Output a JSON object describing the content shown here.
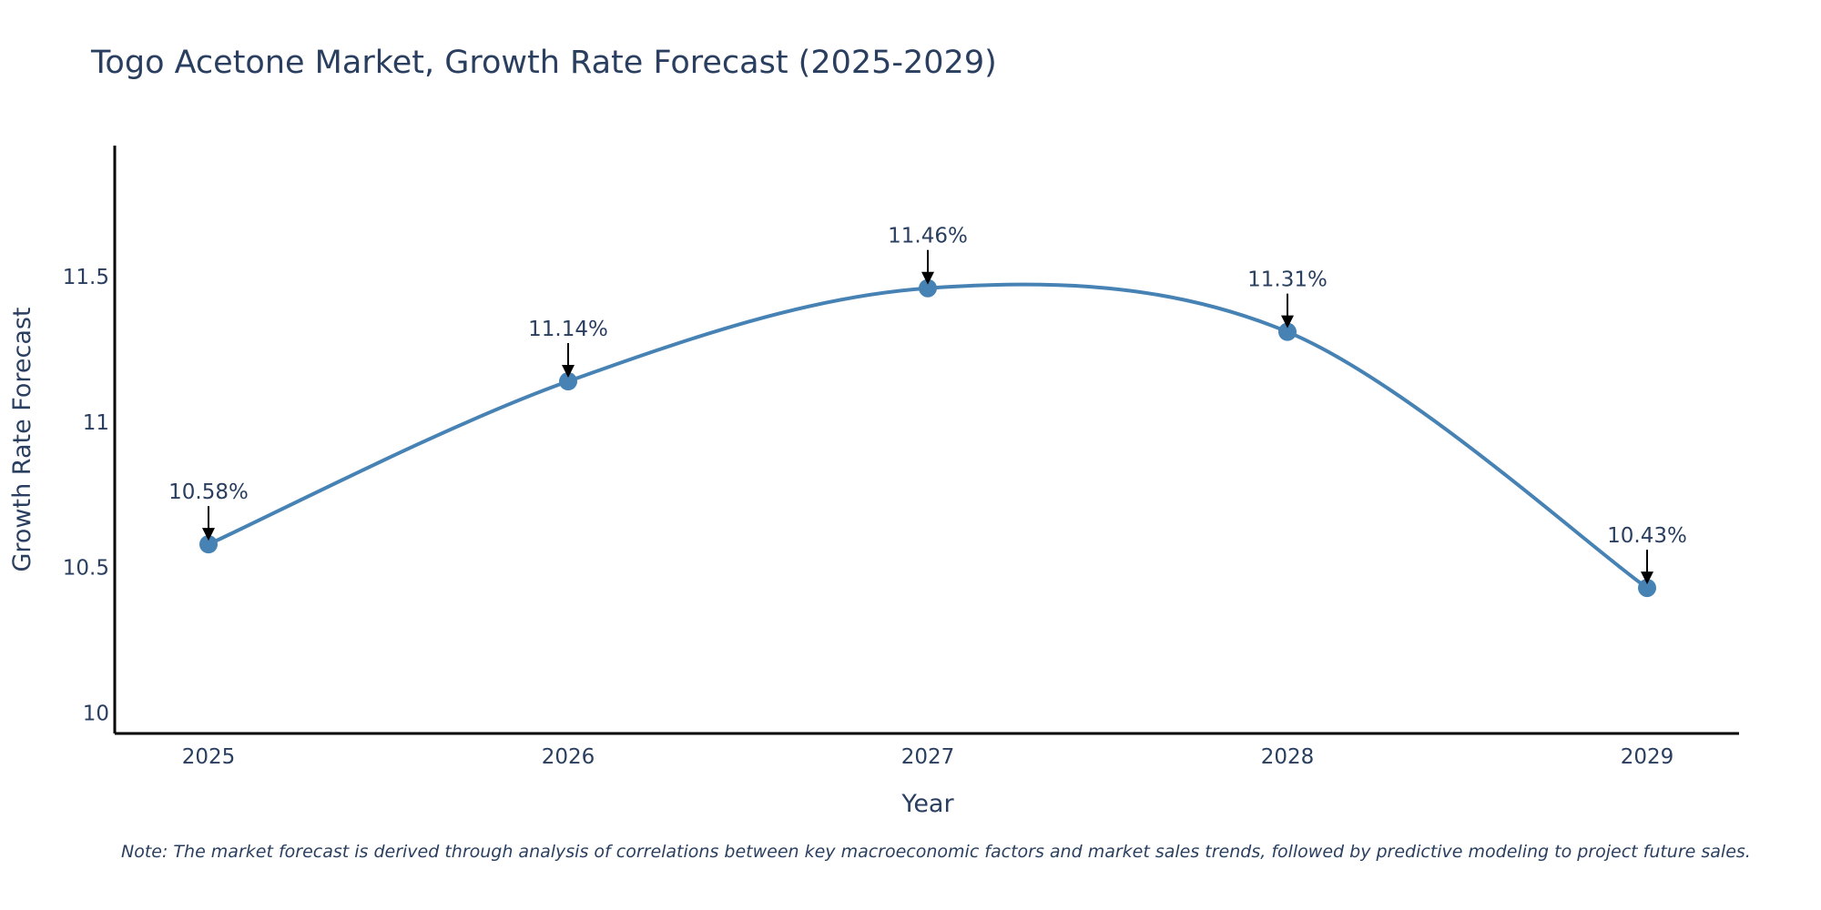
{
  "chart_data": {
    "type": "line",
    "title": "Togo Acetone Market, Growth Rate Forecast (2025-2029)",
    "xlabel": "Year",
    "ylabel": "Growth Rate Forecast",
    "categories": [
      "2025",
      "2026",
      "2027",
      "2028",
      "2029"
    ],
    "series": [
      {
        "name": "Growth Rate Forecast",
        "values": [
          10.58,
          11.14,
          11.46,
          11.31,
          10.43
        ],
        "labels": [
          "10.58%",
          "11.14%",
          "11.46%",
          "11.31%",
          "10.43%"
        ]
      }
    ],
    "ylim": [
      9.93,
      11.95
    ],
    "yticks": [
      10,
      10.5,
      11,
      11.5
    ],
    "ytick_labels": [
      "10",
      "10.5",
      "11",
      "11.5"
    ],
    "grid": false,
    "line_shape": "spline",
    "note": "Note: The market forecast is derived through analysis of correlations between key macroeconomic factors and market sales trends, followed by predictive modeling to project future sales."
  },
  "colors": {
    "line": "#4682b4",
    "marker": "#4682b4",
    "axis": "#000000",
    "text": "#2a3f5f",
    "arrow": "#000000"
  }
}
